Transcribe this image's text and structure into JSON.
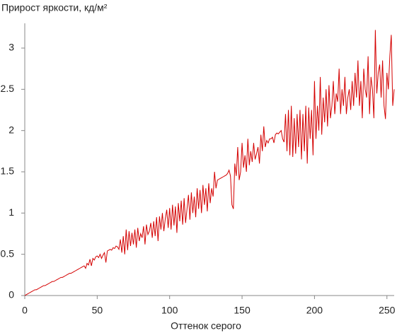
{
  "chart_data": {
    "type": "line",
    "title": "Прирост яркости, кд/м²",
    "x_label": "Оттенок серого",
    "color": "#d40000",
    "grid": false,
    "xlim": [
      0,
      255
    ],
    "xticks": [
      0,
      50,
      100,
      150,
      200,
      250
    ],
    "ylim": [
      0,
      3.3
    ],
    "yticks": [
      0,
      0.5,
      1,
      1.5,
      2,
      2.5,
      3
    ],
    "x": [
      0,
      1,
      2,
      3,
      4,
      5,
      6,
      7,
      8,
      9,
      10,
      11,
      12,
      13,
      14,
      15,
      16,
      17,
      18,
      19,
      20,
      21,
      22,
      23,
      24,
      25,
      26,
      27,
      28,
      29,
      30,
      31,
      32,
      33,
      34,
      35,
      36,
      37,
      38,
      39,
      40,
      41,
      42,
      43,
      44,
      45,
      46,
      47,
      48,
      49,
      50,
      51,
      52,
      53,
      54,
      55,
      56,
      57,
      58,
      59,
      60,
      61,
      62,
      63,
      64,
      65,
      66,
      67,
      68,
      69,
      70,
      71,
      72,
      73,
      74,
      75,
      76,
      77,
      78,
      79,
      80,
      81,
      82,
      83,
      84,
      85,
      86,
      87,
      88,
      89,
      90,
      91,
      92,
      93,
      94,
      95,
      96,
      97,
      98,
      99,
      100,
      101,
      102,
      103,
      104,
      105,
      106,
      107,
      108,
      109,
      110,
      111,
      112,
      113,
      114,
      115,
      116,
      117,
      118,
      119,
      120,
      121,
      122,
      123,
      124,
      125,
      126,
      127,
      128,
      129,
      130,
      131,
      132,
      133,
      134,
      135,
      136,
      137,
      138,
      139,
      140,
      141,
      142,
      143,
      144,
      145,
      146,
      147,
      148,
      149,
      150,
      151,
      152,
      153,
      154,
      155,
      156,
      157,
      158,
      159,
      160,
      161,
      162,
      163,
      164,
      165,
      166,
      167,
      168,
      169,
      170,
      171,
      172,
      173,
      174,
      175,
      176,
      177,
      178,
      179,
      180,
      181,
      182,
      183,
      184,
      185,
      186,
      187,
      188,
      189,
      190,
      191,
      192,
      193,
      194,
      195,
      196,
      197,
      198,
      199,
      200,
      201,
      202,
      203,
      204,
      205,
      206,
      207,
      208,
      209,
      210,
      211,
      212,
      213,
      214,
      215,
      216,
      217,
      218,
      219,
      220,
      221,
      222,
      223,
      224,
      225,
      226,
      227,
      228,
      229,
      230,
      231,
      232,
      233,
      234,
      235,
      236,
      237,
      238,
      239,
      240,
      241,
      242,
      243,
      244,
      245,
      246,
      247,
      248,
      249,
      250,
      251,
      252,
      253,
      254,
      255
    ],
    "values": [
      0,
      0.01,
      0.02,
      0.03,
      0.04,
      0.05,
      0.06,
      0.07,
      0.07,
      0.08,
      0.09,
      0.1,
      0.11,
      0.12,
      0.12,
      0.13,
      0.14,
      0.15,
      0.16,
      0.17,
      0.17,
      0.18,
      0.19,
      0.2,
      0.21,
      0.22,
      0.22,
      0.23,
      0.24,
      0.25,
      0.26,
      0.27,
      0.27,
      0.28,
      0.29,
      0.3,
      0.31,
      0.32,
      0.33,
      0.34,
      0.35,
      0.36,
      0.33,
      0.39,
      0.37,
      0.44,
      0.36,
      0.45,
      0.43,
      0.47,
      0.48,
      0.46,
      0.5,
      0.45,
      0.49,
      0.52,
      0.4,
      0.54,
      0.55,
      0.56,
      0.55,
      0.58,
      0.57,
      0.6,
      0.59,
      0.56,
      0.68,
      0.52,
      0.72,
      0.5,
      0.8,
      0.55,
      0.78,
      0.6,
      0.76,
      0.62,
      0.8,
      0.58,
      0.82,
      0.66,
      0.75,
      0.7,
      0.84,
      0.62,
      0.86,
      0.74,
      0.78,
      0.88,
      0.7,
      0.9,
      0.72,
      0.95,
      0.66,
      0.96,
      0.8,
      1.0,
      0.78,
      0.93,
      1.04,
      0.82,
      1.06,
      0.8,
      1.1,
      0.85,
      1.08,
      0.76,
      1.12,
      0.9,
      1.15,
      0.86,
      1.18,
      0.88,
      1.05,
      1.22,
      0.92,
      1.25,
      1.0,
      1.2,
      0.95,
      1.3,
      1.05,
      1.28,
      1.0,
      1.34,
      1.1,
      1.3,
      1.02,
      1.36,
      1.12,
      1.3,
      1.2,
      1.5,
      1.3,
      1.4,
      1.41,
      1.42,
      1.43,
      1.44,
      1.45,
      1.46,
      1.48,
      1.52,
      1.45,
      1.1,
      1.05,
      1.6,
      1.45,
      1.8,
      1.4,
      1.5,
      1.85,
      1.55,
      1.7,
      1.5,
      1.9,
      1.58,
      1.75,
      1.62,
      1.85,
      1.65,
      1.72,
      1.8,
      1.6,
      1.95,
      1.75,
      2.05,
      1.8,
      1.88,
      1.85,
      1.9,
      1.9,
      1.92,
      1.85,
      1.95,
      1.97,
      1.96,
      1.98,
      2.0,
      1.9,
      1.86,
      2.2,
      1.75,
      2.25,
      1.7,
      2.3,
      1.68,
      2.15,
      1.72,
      2.2,
      1.8,
      2.25,
      1.65,
      2.2,
      1.75,
      2.3,
      1.6,
      2.28,
      1.9,
      2.25,
      1.7,
      2.6,
      1.9,
      2.3,
      2.0,
      2.65,
      1.95,
      2.4,
      2.1,
      2.5,
      2.05,
      2.55,
      2.15,
      2.3,
      2.6,
      2.2,
      2.45,
      2.35,
      2.75,
      2.2,
      2.5,
      2.3,
      2.65,
      2.2,
      2.4,
      2.5,
      2.25,
      2.6,
      2.3,
      2.7,
      2.4,
      2.85,
      2.3,
      2.6,
      2.15,
      2.75,
      2.5,
      2.4,
      2.9,
      2.2,
      2.65,
      2.5,
      2.15,
      3.22,
      2.45,
      2.7,
      2.8,
      2.4,
      2.85,
      2.3,
      2.14,
      2.7,
      2.5,
      2.9,
      3.16,
      2.3,
      2.5
    ]
  }
}
